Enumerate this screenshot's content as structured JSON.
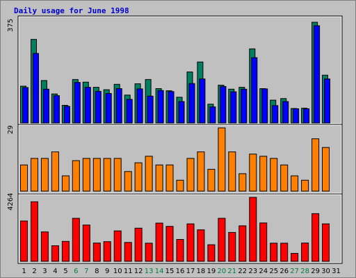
{
  "title": "Daily usage for June 1998",
  "colors": {
    "background": "#c0c0c0",
    "title": "#0000cc",
    "hits": "#008060",
    "files": "#0000ff",
    "pages": "#ff8000",
    "sites": "#ff0000",
    "weekend_label": "#007f3f",
    "weekday_label": "#000000"
  },
  "chart_data": [
    {
      "type": "bar",
      "panel": "hits-files",
      "max_label": "375",
      "ylim": [
        0,
        375
      ],
      "categories": [
        "1",
        "2",
        "3",
        "4",
        "5",
        "6",
        "7",
        "8",
        "9",
        "10",
        "11",
        "12",
        "13",
        "14",
        "15",
        "16",
        "17",
        "18",
        "19",
        "20",
        "21",
        "22",
        "23",
        "24",
        "25",
        "26",
        "27",
        "28",
        "29",
        "30",
        "31"
      ],
      "weekend_days": [
        "6",
        "7",
        "13",
        "14",
        "20",
        "21",
        "27",
        "28"
      ],
      "series": [
        {
          "values": [
            137,
            311,
            158,
            108,
            66,
            162,
            152,
            133,
            124,
            144,
            104,
            146,
            162,
            128,
            120,
            96,
            190,
            227,
            70,
            141,
            126,
            133,
            276,
            128,
            85,
            91,
            54,
            55,
            375,
            178,
            0
          ]
        },
        {
          "values": [
            132,
            259,
            126,
            102,
            62,
            151,
            133,
            118,
            110,
            128,
            88,
            127,
            100,
            121,
            117,
            80,
            147,
            164,
            60,
            136,
            116,
            126,
            243,
            127,
            65,
            80,
            53,
            53,
            362,
            164,
            0
          ]
        }
      ]
    },
    {
      "type": "bar",
      "panel": "pages",
      "max_label": "29",
      "ylim": [
        0,
        29
      ],
      "categories": [
        "1",
        "2",
        "3",
        "4",
        "5",
        "6",
        "7",
        "8",
        "9",
        "10",
        "11",
        "12",
        "13",
        "14",
        "15",
        "16",
        "17",
        "18",
        "19",
        "20",
        "21",
        "22",
        "23",
        "24",
        "25",
        "26",
        "27",
        "28",
        "29",
        "30",
        "31"
      ],
      "series": [
        {
          "values": [
            12,
            15,
            15,
            18,
            7,
            14,
            15,
            15,
            15,
            15,
            9,
            13,
            16,
            12,
            12,
            5,
            15,
            18,
            10,
            29,
            18,
            8,
            17,
            16,
            15,
            12,
            7,
            5,
            24,
            20,
            0
          ]
        }
      ]
    },
    {
      "type": "bar",
      "panel": "sites",
      "max_label": "4264",
      "ylim": [
        0,
        4264
      ],
      "categories": [
        "1",
        "2",
        "3",
        "4",
        "5",
        "6",
        "7",
        "8",
        "9",
        "10",
        "11",
        "12",
        "13",
        "14",
        "15",
        "16",
        "17",
        "18",
        "19",
        "20",
        "21",
        "22",
        "23",
        "24",
        "25",
        "26",
        "27",
        "28",
        "29",
        "30",
        "31"
      ],
      "series": [
        {
          "values": [
            2690,
            3970,
            1960,
            1040,
            1330,
            2870,
            2420,
            1220,
            1310,
            2030,
            1260,
            2210,
            1210,
            2550,
            2330,
            1460,
            2500,
            2100,
            1110,
            2870,
            1930,
            2370,
            4264,
            2560,
            1210,
            1210,
            530,
            1220,
            3180,
            2500,
            0
          ]
        }
      ]
    }
  ]
}
